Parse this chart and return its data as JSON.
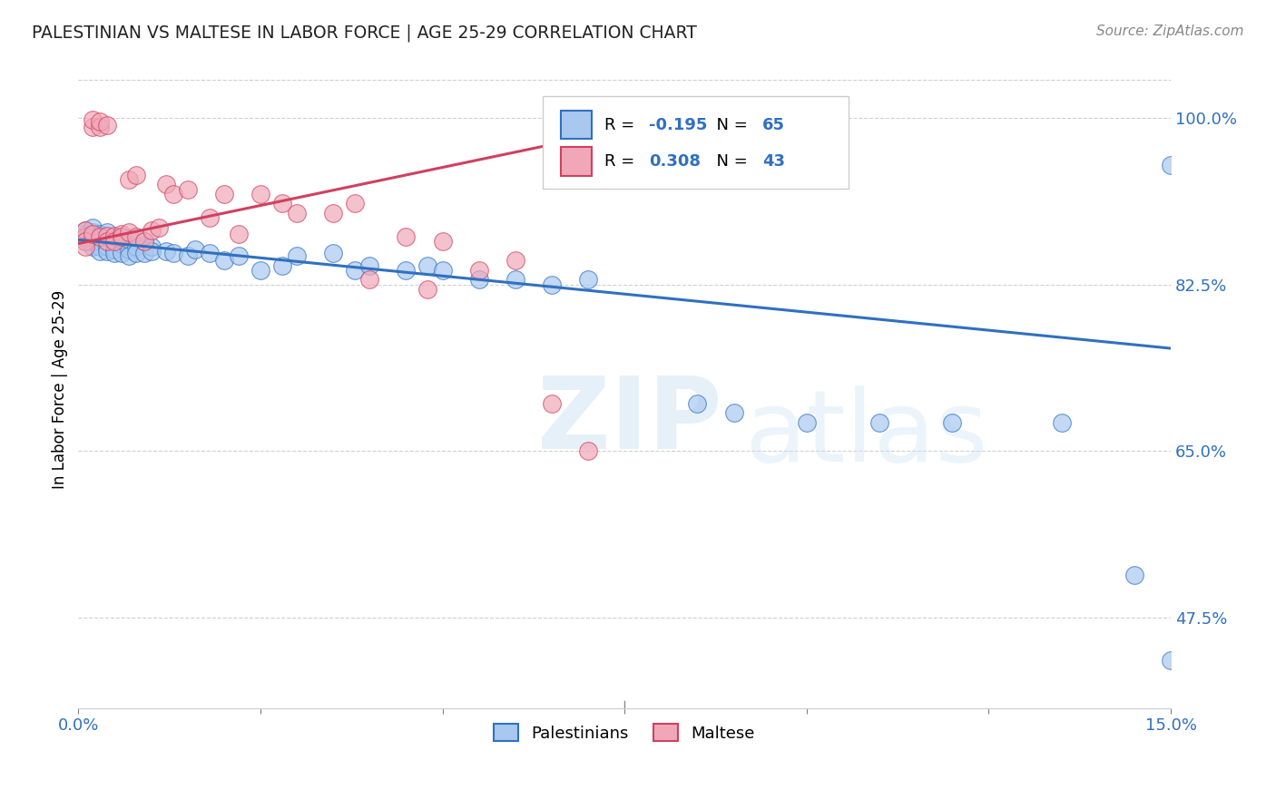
{
  "title": "PALESTINIAN VS MALTESE IN LABOR FORCE | AGE 25-29 CORRELATION CHART",
  "source": "Source: ZipAtlas.com",
  "ylabel": "In Labor Force | Age 25-29",
  "ytick_vals": [
    0.475,
    0.65,
    0.825,
    1.0
  ],
  "ytick_labels": [
    "47.5%",
    "65.0%",
    "82.5%",
    "100.0%"
  ],
  "xmin": 0.0,
  "xmax": 0.15,
  "ymin": 0.38,
  "ymax": 1.05,
  "palestinian_R": -0.195,
  "palestinian_N": 65,
  "maltese_R": 0.308,
  "maltese_N": 43,
  "palestinian_color": "#a8c8f0",
  "maltese_color": "#f0a8b8",
  "trend_blue": "#3070c0",
  "trend_pink": "#d04060",
  "legend_label_1": "Palestinians",
  "legend_label_2": "Maltese",
  "pal_trend_x0": 0.0,
  "pal_trend_x1": 0.15,
  "pal_trend_y0": 0.872,
  "pal_trend_y1": 0.758,
  "mal_trend_x0": 0.0,
  "mal_trend_x1": 0.065,
  "mal_trend_y0": 0.868,
  "mal_trend_y1": 0.972,
  "palestinian_x": [
    0.001,
    0.001,
    0.001,
    0.001,
    0.002,
    0.002,
    0.002,
    0.002,
    0.002,
    0.003,
    0.003,
    0.003,
    0.003,
    0.003,
    0.003,
    0.004,
    0.004,
    0.004,
    0.004,
    0.004,
    0.005,
    0.005,
    0.005,
    0.005,
    0.006,
    0.006,
    0.006,
    0.007,
    0.007,
    0.007,
    0.008,
    0.008,
    0.009,
    0.009,
    0.01,
    0.01,
    0.012,
    0.013,
    0.015,
    0.016,
    0.018,
    0.02,
    0.022,
    0.025,
    0.028,
    0.03,
    0.035,
    0.038,
    0.04,
    0.045,
    0.048,
    0.05,
    0.055,
    0.06,
    0.065,
    0.07,
    0.085,
    0.09,
    0.1,
    0.11,
    0.12,
    0.135,
    0.145,
    0.15,
    0.15
  ],
  "palestinian_y": [
    0.875,
    0.878,
    0.882,
    0.87,
    0.875,
    0.88,
    0.87,
    0.865,
    0.885,
    0.872,
    0.876,
    0.87,
    0.865,
    0.878,
    0.86,
    0.87,
    0.875,
    0.865,
    0.88,
    0.86,
    0.87,
    0.862,
    0.875,
    0.858,
    0.868,
    0.858,
    0.872,
    0.862,
    0.872,
    0.855,
    0.865,
    0.858,
    0.858,
    0.87,
    0.865,
    0.86,
    0.86,
    0.858,
    0.855,
    0.862,
    0.858,
    0.85,
    0.855,
    0.84,
    0.845,
    0.855,
    0.858,
    0.84,
    0.845,
    0.84,
    0.845,
    0.84,
    0.83,
    0.83,
    0.825,
    0.83,
    0.7,
    0.69,
    0.68,
    0.68,
    0.68,
    0.68,
    0.52,
    0.43,
    0.95
  ],
  "maltese_x": [
    0.001,
    0.001,
    0.001,
    0.001,
    0.002,
    0.002,
    0.002,
    0.003,
    0.003,
    0.003,
    0.004,
    0.004,
    0.004,
    0.005,
    0.005,
    0.006,
    0.006,
    0.007,
    0.007,
    0.008,
    0.008,
    0.009,
    0.01,
    0.011,
    0.012,
    0.013,
    0.015,
    0.018,
    0.02,
    0.022,
    0.025,
    0.028,
    0.03,
    0.035,
    0.038,
    0.04,
    0.045,
    0.048,
    0.05,
    0.055,
    0.06,
    0.065,
    0.07
  ],
  "maltese_y": [
    0.875,
    0.882,
    0.87,
    0.865,
    0.878,
    0.99,
    0.998,
    0.99,
    0.996,
    0.875,
    0.992,
    0.876,
    0.87,
    0.876,
    0.87,
    0.878,
    0.875,
    0.935,
    0.88,
    0.875,
    0.94,
    0.87,
    0.882,
    0.885,
    0.93,
    0.92,
    0.925,
    0.895,
    0.92,
    0.878,
    0.92,
    0.91,
    0.9,
    0.9,
    0.91,
    0.83,
    0.875,
    0.82,
    0.87,
    0.84,
    0.85,
    0.7,
    0.65
  ]
}
